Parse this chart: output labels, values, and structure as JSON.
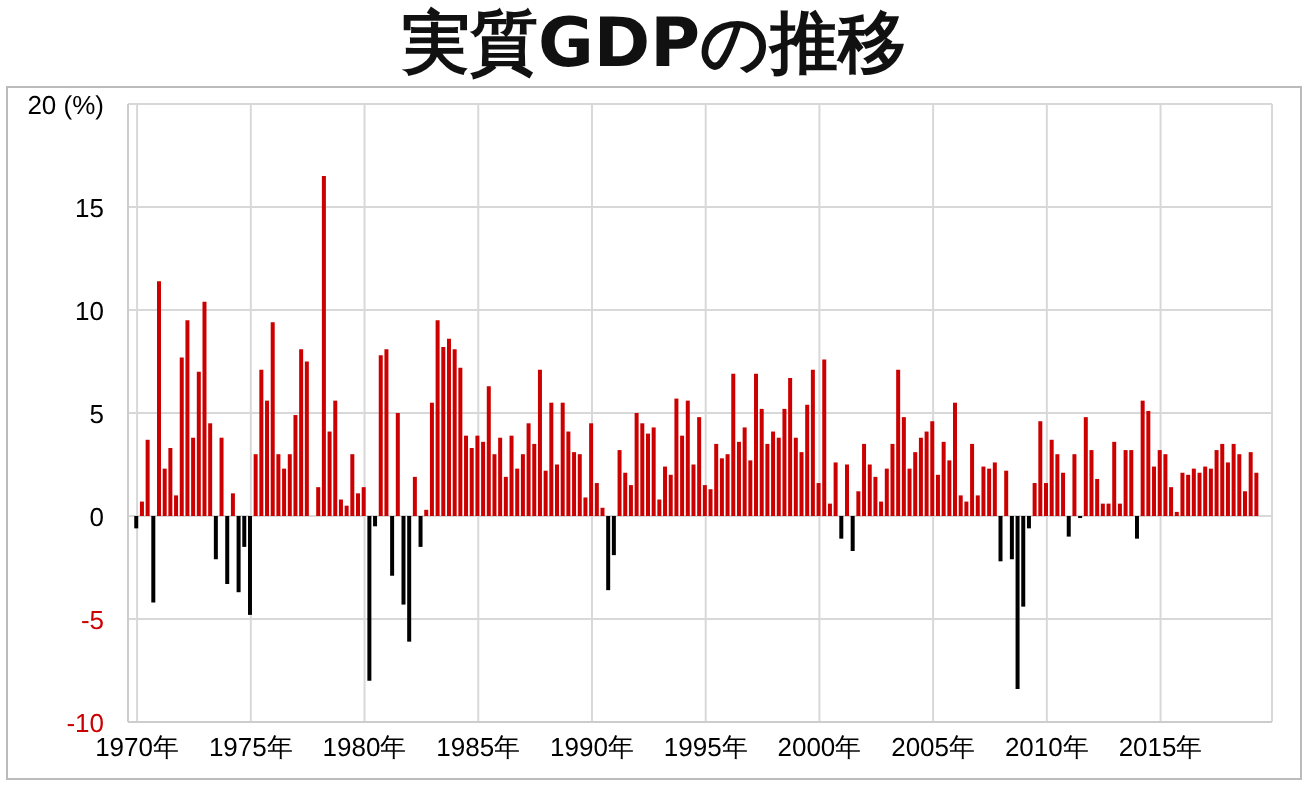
{
  "chart_data": {
    "type": "bar",
    "title": "実質GDPの推移",
    "x": [
      1970,
      1970.25,
      1970.5,
      1970.75,
      1971,
      1971.25,
      1971.5,
      1971.75,
      1972,
      1972.25,
      1972.5,
      1972.75,
      1973,
      1973.25,
      1973.5,
      1973.75,
      1974,
      1974.25,
      1974.5,
      1974.75,
      1975,
      1975.25,
      1975.5,
      1975.75,
      1976,
      1976.25,
      1976.5,
      1976.75,
      1977,
      1977.25,
      1977.5,
      1977.75,
      1978,
      1978.25,
      1978.5,
      1978.75,
      1979,
      1979.25,
      1979.5,
      1979.75,
      1980,
      1980.25,
      1980.5,
      1980.75,
      1981,
      1981.25,
      1981.5,
      1981.75,
      1982,
      1982.25,
      1982.5,
      1982.75,
      1983,
      1983.25,
      1983.5,
      1983.75,
      1984,
      1984.25,
      1984.5,
      1984.75,
      1985,
      1985.25,
      1985.5,
      1985.75,
      1986,
      1986.25,
      1986.5,
      1986.75,
      1987,
      1987.25,
      1987.5,
      1987.75,
      1988,
      1988.25,
      1988.5,
      1988.75,
      1989,
      1989.25,
      1989.5,
      1989.75,
      1990,
      1990.25,
      1990.5,
      1990.75,
      1991,
      1991.25,
      1991.5,
      1991.75,
      1992,
      1992.25,
      1992.5,
      1992.75,
      1993,
      1993.25,
      1993.5,
      1993.75,
      1994,
      1994.25,
      1994.5,
      1994.75,
      1995,
      1995.25,
      1995.5,
      1995.75,
      1996,
      1996.25,
      1996.5,
      1996.75,
      1997,
      1997.25,
      1997.5,
      1997.75,
      1998,
      1998.25,
      1998.5,
      1998.75,
      1999,
      1999.25,
      1999.5,
      1999.75,
      2000,
      2000.25,
      2000.5,
      2000.75,
      2001,
      2001.25,
      2001.5,
      2001.75,
      2002,
      2002.25,
      2002.5,
      2002.75,
      2003,
      2003.25,
      2003.5,
      2003.75,
      2004,
      2004.25,
      2004.5,
      2004.75,
      2005,
      2005.25,
      2005.5,
      2005.75,
      2006,
      2006.25,
      2006.5,
      2006.75,
      2007,
      2007.25,
      2007.5,
      2007.75,
      2008,
      2008.25,
      2008.5,
      2008.75,
      2009,
      2009.25,
      2009.5,
      2009.75,
      2010,
      2010.25,
      2010.5,
      2010.75,
      2011,
      2011.25,
      2011.5,
      2011.75,
      2012,
      2012.25,
      2012.5,
      2012.75,
      2013,
      2013.25,
      2013.5,
      2013.75,
      2014,
      2014.25,
      2014.5,
      2014.75,
      2015,
      2015.25,
      2015.5,
      2015.75,
      2016,
      2016.25,
      2016.5,
      2016.75,
      2017,
      2017.25,
      2017.5,
      2017.75,
      2018,
      2018.25,
      2018.5,
      2018.75,
      2019,
      2019.25
    ],
    "values": [
      -0.6,
      0.7,
      3.7,
      -4.2,
      11.4,
      2.3,
      3.3,
      1.0,
      7.7,
      9.5,
      3.8,
      7.0,
      10.4,
      4.5,
      -2.1,
      3.8,
      -3.3,
      1.1,
      -3.7,
      -1.5,
      -4.8,
      3.0,
      7.1,
      5.6,
      9.4,
      3.0,
      2.3,
      3.0,
      4.9,
      8.1,
      7.5,
      0,
      1.4,
      16.5,
      4.1,
      5.6,
      0.8,
      0.5,
      3.0,
      1.1,
      1.4,
      -8.0,
      -0.5,
      7.8,
      8.1,
      -2.9,
      5.0,
      -4.3,
      -6.1,
      1.9,
      -1.5,
      0.3,
      5.5,
      9.5,
      8.2,
      8.6,
      8.1,
      7.2,
      3.9,
      3.3,
      3.9,
      3.6,
      6.3,
      3.0,
      3.8,
      1.9,
      3.9,
      2.3,
      3.0,
      4.5,
      3.5,
      7.1,
      2.2,
      5.5,
      2.5,
      5.5,
      4.1,
      3.1,
      3.0,
      0.9,
      4.5,
      1.6,
      0.4,
      -3.6,
      -1.9,
      3.2,
      2.1,
      1.5,
      5.0,
      4.5,
      4.0,
      4.3,
      0.8,
      2.4,
      2.0,
      5.7,
      3.9,
      5.6,
      2.5,
      4.8,
      1.5,
      1.3,
      3.5,
      2.8,
      3.0,
      6.9,
      3.6,
      4.3,
      2.7,
      6.9,
      5.2,
      3.5,
      4.1,
      3.8,
      5.2,
      6.7,
      3.8,
      3.1,
      5.4,
      7.1,
      1.6,
      7.6,
      0.6,
      2.6,
      -1.1,
      2.5,
      -1.7,
      1.2,
      3.5,
      2.5,
      1.9,
      0.7,
      2.3,
      3.5,
      7.1,
      4.8,
      2.3,
      3.1,
      3.8,
      4.1,
      4.6,
      2.0,
      3.6,
      2.7,
      5.5,
      1.0,
      0.7,
      3.5,
      1.0,
      2.4,
      2.3,
      2.6,
      -2.2,
      2.2,
      -2.1,
      -8.4,
      -4.4,
      -0.6,
      1.6,
      4.6,
      1.6,
      3.7,
      3.0,
      2.1,
      -1.0,
      3.0,
      -0.1,
      4.8,
      3.2,
      1.8,
      0.6,
      0.6,
      3.6,
      0.6,
      3.2,
      3.2,
      -1.1,
      5.6,
      5.1,
      2.4,
      3.2,
      3.0,
      1.4,
      0.2,
      2.1,
      2.0,
      2.3,
      2.1,
      2.4,
      2.3,
      3.2,
      3.5,
      2.6,
      3.5,
      3.0,
      1.2,
      3.1,
      2.1
    ],
    "colors": [
      "#000000",
      "#cc0000",
      "#cc0000",
      "#000000",
      "#cc0000",
      "#cc0000",
      "#cc0000",
      "#cc0000",
      "#cc0000",
      "#cc0000",
      "#cc0000",
      "#cc0000",
      "#cc0000",
      "#cc0000",
      "#000000",
      "#cc0000",
      "#000000",
      "#cc0000",
      "#000000",
      "#000000",
      "#000000",
      "#cc0000",
      "#cc0000",
      "#cc0000",
      "#cc0000",
      "#cc0000",
      "#cc0000",
      "#cc0000",
      "#cc0000",
      "#cc0000",
      "#cc0000",
      "#cc0000",
      "#cc0000",
      "#cc0000",
      "#cc0000",
      "#cc0000",
      "#cc0000",
      "#cc0000",
      "#cc0000",
      "#cc0000",
      "#cc0000",
      "#000000",
      "#000000",
      "#cc0000",
      "#cc0000",
      "#000000",
      "#cc0000",
      "#000000",
      "#000000",
      "#cc0000",
      "#000000",
      "#cc0000",
      "#cc0000",
      "#cc0000",
      "#cc0000",
      "#cc0000",
      "#cc0000",
      "#cc0000",
      "#cc0000",
      "#cc0000",
      "#cc0000",
      "#cc0000",
      "#cc0000",
      "#cc0000",
      "#cc0000",
      "#cc0000",
      "#cc0000",
      "#cc0000",
      "#cc0000",
      "#cc0000",
      "#cc0000",
      "#cc0000",
      "#cc0000",
      "#cc0000",
      "#cc0000",
      "#cc0000",
      "#cc0000",
      "#cc0000",
      "#cc0000",
      "#cc0000",
      "#cc0000",
      "#cc0000",
      "#cc0000",
      "#000000",
      "#000000",
      "#cc0000",
      "#cc0000",
      "#cc0000",
      "#cc0000",
      "#cc0000",
      "#cc0000",
      "#cc0000",
      "#cc0000",
      "#cc0000",
      "#cc0000",
      "#cc0000",
      "#cc0000",
      "#cc0000",
      "#cc0000",
      "#cc0000",
      "#cc0000",
      "#cc0000",
      "#cc0000",
      "#cc0000",
      "#cc0000",
      "#cc0000",
      "#cc0000",
      "#cc0000",
      "#cc0000",
      "#cc0000",
      "#cc0000",
      "#cc0000",
      "#cc0000",
      "#cc0000",
      "#cc0000",
      "#cc0000",
      "#cc0000",
      "#cc0000",
      "#cc0000",
      "#cc0000",
      "#cc0000",
      "#cc0000",
      "#cc0000",
      "#cc0000",
      "#000000",
      "#cc0000",
      "#000000",
      "#cc0000",
      "#cc0000",
      "#cc0000",
      "#cc0000",
      "#cc0000",
      "#cc0000",
      "#cc0000",
      "#cc0000",
      "#cc0000",
      "#cc0000",
      "#cc0000",
      "#cc0000",
      "#cc0000",
      "#cc0000",
      "#cc0000",
      "#cc0000",
      "#cc0000",
      "#cc0000",
      "#cc0000",
      "#cc0000",
      "#cc0000",
      "#cc0000",
      "#cc0000",
      "#cc0000",
      "#cc0000",
      "#000000",
      "#cc0000",
      "#000000",
      "#000000",
      "#000000",
      "#000000",
      "#cc0000",
      "#cc0000",
      "#cc0000",
      "#cc0000",
      "#cc0000",
      "#cc0000",
      "#000000",
      "#cc0000",
      "#000000",
      "#cc0000",
      "#cc0000",
      "#cc0000",
      "#cc0000",
      "#cc0000",
      "#cc0000",
      "#cc0000",
      "#cc0000",
      "#cc0000",
      "#000000",
      "#cc0000",
      "#cc0000",
      "#cc0000",
      "#cc0000",
      "#cc0000",
      "#cc0000",
      "#cc0000",
      "#cc0000",
      "#cc0000",
      "#cc0000",
      "#cc0000",
      "#cc0000",
      "#cc0000",
      "#cc0000",
      "#cc0000",
      "#cc0000",
      "#cc0000",
      "#cc0000",
      "#cc0000",
      "#cc0000",
      "#cc0000"
    ],
    "xlim": [
      1969.6,
      2019.9
    ],
    "xticks": [
      {
        "value": 1970,
        "label": "1970年"
      },
      {
        "value": 1975,
        "label": "1975年"
      },
      {
        "value": 1980,
        "label": "1980年"
      },
      {
        "value": 1985,
        "label": "1985年"
      },
      {
        "value": 1990,
        "label": "1990年"
      },
      {
        "value": 1995,
        "label": "1995年"
      },
      {
        "value": 2000,
        "label": "2000年"
      },
      {
        "value": 2005,
        "label": "2005年"
      },
      {
        "value": 2010,
        "label": "2010年"
      },
      {
        "value": 2015,
        "label": "2015年"
      }
    ],
    "ylim": [
      -10,
      20
    ],
    "yticks": [
      -10,
      -5,
      0,
      5,
      10,
      15,
      {
        "value": 20,
        "label": "20 (%)"
      }
    ],
    "grid": true
  }
}
